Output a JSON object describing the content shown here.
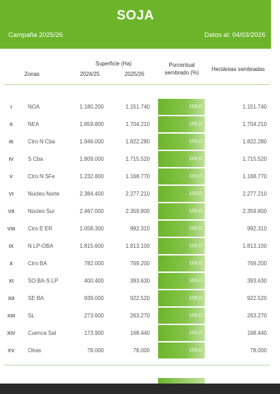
{
  "header": {
    "title": "SOJA",
    "campaign": "Campaña 2025/26",
    "date": "Datos al: 04/03/2026"
  },
  "columns": {
    "zonas": "Zonas",
    "superficie": "Superficie (Ha)",
    "y2024": "2024/25",
    "y2025": "2025/26",
    "porcentual_1": "Porcentual",
    "porcentual_2": "sembrado (%)",
    "hectareas": "Hectáreas sembradas"
  },
  "rows": [
    {
      "num": "I",
      "zona": "NOA",
      "v24": "1.180.200",
      "v25": "1.151.740",
      "pct": "100,0",
      "sem": "1.151.740"
    },
    {
      "num": "II",
      "zona": "NEA",
      "v24": "1.859.800",
      "v25": "1.704.210",
      "pct": "100,0",
      "sem": "1.704.210"
    },
    {
      "num": "III",
      "zona": "Ctro N Cba",
      "v24": "1.946.000",
      "v25": "1.822.280",
      "pct": "100,0",
      "sem": "1.822.280"
    },
    {
      "num": "IV",
      "zona": "S Cba",
      "v24": "1.809.000",
      "v25": "1.715.520",
      "pct": "100,0",
      "sem": "1.715.520"
    },
    {
      "num": "V",
      "zona": "Ctro N SFe",
      "v24": "1.232.800",
      "v25": "1.168.770",
      "pct": "100,0",
      "sem": "1.168.770"
    },
    {
      "num": "VI",
      "zona": "Núcleo Norte",
      "v24": "2.384.400",
      "v25": "2.277.210",
      "pct": "100,0",
      "sem": "2.277.210"
    },
    {
      "num": "VII",
      "zona": "Núcleo Sur",
      "v24": "2.467.000",
      "v25": "2.359.800",
      "pct": "100,0",
      "sem": "2.359.800"
    },
    {
      "num": "VIII",
      "zona": "Ctro E ER",
      "v24": "1.058.300",
      "v25": "992.310",
      "pct": "100,0",
      "sem": "992.310"
    },
    {
      "num": "IX",
      "zona": "N LP-OBA",
      "v24": "1.815.600",
      "v25": "1.813.100",
      "pct": "100,0",
      "sem": "1.813.100"
    },
    {
      "num": "X",
      "zona": "Ctro BA",
      "v24": "782.000",
      "v25": "769.200",
      "pct": "100,0",
      "sem": "769.200"
    },
    {
      "num": "XI",
      "zona": "SO BA-S LP",
      "v24": "400.400",
      "v25": "393.630",
      "pct": "100,0",
      "sem": "393.630"
    },
    {
      "num": "XII",
      "zona": "SE BA",
      "v24": "939.000",
      "v25": "922.520",
      "pct": "100,0",
      "sem": "922.520"
    },
    {
      "num": "XIII",
      "zona": "SL",
      "v24": "273.600",
      "v25": "263.270",
      "pct": "100,0",
      "sem": "263.270"
    },
    {
      "num": "XIV",
      "zona": "Cuenca Sal",
      "v24": "173.900",
      "v25": "168.440",
      "pct": "100,0",
      "sem": "168.440"
    },
    {
      "num": "XV",
      "zona": "Otras",
      "v24": "78.000",
      "v25": "78.000",
      "pct": "100,0",
      "sem": "78.000"
    }
  ],
  "colors": {
    "accent": "#6cb52b",
    "bar_light": "#bfe09a"
  }
}
